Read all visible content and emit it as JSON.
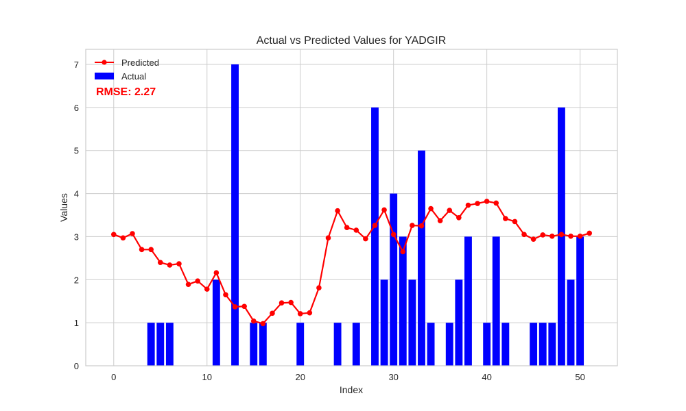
{
  "chart_data": {
    "type": "bar",
    "title": "Actual vs Predicted Values for YADGIR",
    "xlabel": "Index",
    "ylabel": "Values",
    "xlim": [
      -3,
      54
    ],
    "ylim": [
      0,
      7.35
    ],
    "xticks": [
      0,
      10,
      20,
      30,
      40,
      50
    ],
    "yticks": [
      0,
      1,
      2,
      3,
      4,
      5,
      6,
      7
    ],
    "grid": true,
    "legend_position": "top-left",
    "annotation": "RMSE: 2.27",
    "x": [
      0,
      1,
      2,
      3,
      4,
      5,
      6,
      7,
      8,
      9,
      10,
      11,
      12,
      13,
      14,
      15,
      16,
      17,
      18,
      19,
      20,
      21,
      22,
      23,
      24,
      25,
      26,
      27,
      28,
      29,
      30,
      31,
      32,
      33,
      34,
      35,
      36,
      37,
      38,
      39,
      40,
      41,
      42,
      43,
      44,
      45,
      46,
      47,
      48,
      49,
      50,
      51
    ],
    "series": [
      {
        "name": "Predicted",
        "type": "line",
        "color": "#ff0000",
        "values": [
          3.05,
          2.97,
          3.07,
          2.7,
          2.7,
          2.4,
          2.34,
          2.37,
          1.89,
          1.97,
          1.78,
          2.16,
          1.65,
          1.37,
          1.38,
          1.04,
          0.98,
          1.22,
          1.46,
          1.47,
          1.21,
          1.23,
          1.81,
          2.97,
          3.6,
          3.21,
          3.15,
          2.95,
          3.26,
          3.62,
          3.05,
          2.65,
          3.26,
          3.25,
          3.65,
          3.37,
          3.61,
          3.44,
          3.73,
          3.77,
          3.82,
          3.78,
          3.42,
          3.35,
          3.05,
          2.94,
          3.04,
          3.01,
          3.05,
          3.01,
          3.01,
          3.08
        ]
      },
      {
        "name": "Actual",
        "type": "bar",
        "color": "#0000ff",
        "values": [
          0,
          0,
          0,
          0,
          1,
          1,
          1,
          0,
          0,
          0,
          0,
          2,
          0,
          7,
          0,
          1,
          1,
          0,
          0,
          0,
          1,
          0,
          0,
          0,
          1,
          0,
          1,
          0,
          6,
          2,
          4,
          3,
          2,
          5,
          1,
          0,
          1,
          2,
          3,
          0,
          1,
          3,
          1,
          0,
          0,
          1,
          1,
          1,
          6,
          2,
          3,
          0
        ]
      }
    ]
  }
}
